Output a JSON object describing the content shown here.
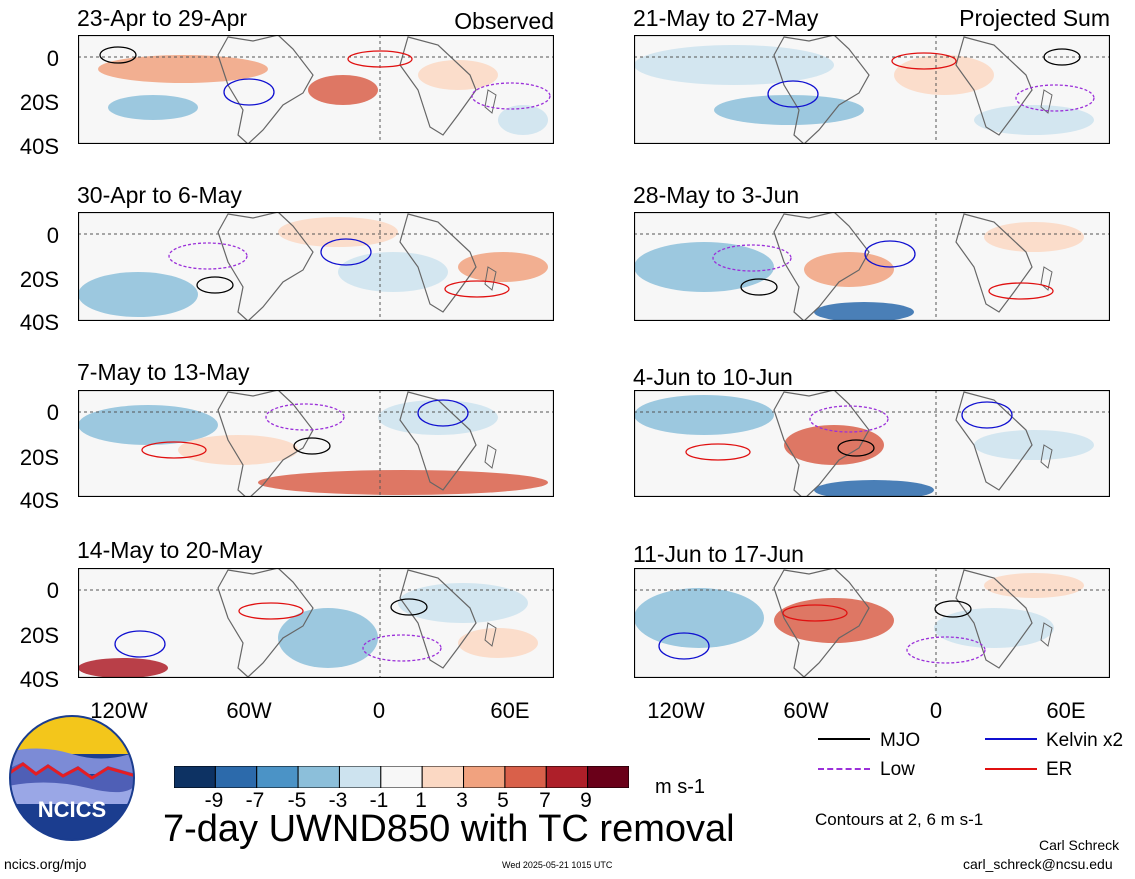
{
  "tags": {
    "observed": "Observed",
    "projected": "Projected Sum"
  },
  "panels": [
    {
      "title": "23-Apr to 29-Apr",
      "group": "observed"
    },
    {
      "title": "30-Apr to 6-May",
      "group": "observed"
    },
    {
      "title": "7-May to 13-May",
      "group": "observed"
    },
    {
      "title": "14-May to 20-May",
      "group": "observed"
    },
    {
      "title": "21-May to 27-May",
      "group": "projected"
    },
    {
      "title": "28-May to 3-Jun",
      "group": "projected"
    },
    {
      "title": "4-Jun to 10-Jun",
      "group": "projected"
    },
    {
      "title": "11-Jun to 17-Jun",
      "group": "projected"
    }
  ],
  "lat_labels": [
    "0",
    "20S",
    "40S"
  ],
  "lon_labels": [
    "120W",
    "60W",
    "0",
    "60E"
  ],
  "colorbar": {
    "colors": [
      "#0d3263",
      "#2c6aab",
      "#4b93c6",
      "#8cbfda",
      "#cde3ef",
      "#f7f7f7",
      "#fbd8c3",
      "#f1a27f",
      "#d9604a",
      "#ae1f29",
      "#6a0019"
    ],
    "labels": [
      "-9",
      "-7",
      "-5",
      "-3",
      "-1",
      "1",
      "3",
      "5",
      "7",
      "9"
    ],
    "unit": "m s-1"
  },
  "legend": {
    "items": [
      {
        "label": "MJO",
        "color": "#000000",
        "style": "solid"
      },
      {
        "label": "Kelvin x2",
        "color": "#1010d0",
        "style": "solid"
      },
      {
        "label": "Low",
        "color": "#9b30d9",
        "style": "dashed"
      },
      {
        "label": "ER",
        "color": "#e01010",
        "style": "solid"
      }
    ],
    "contours_note": "Contours at 2, 6 m s-1"
  },
  "main_title": "7-day UWND850 with TC removal",
  "logo_text": "NCICS",
  "footer": {
    "left": "ncics.org/mjo",
    "center": "Wed 2025-05-21 1015 UTC",
    "author": "Carl Schreck",
    "email": "carl_schreck@ncsu.edu"
  }
}
